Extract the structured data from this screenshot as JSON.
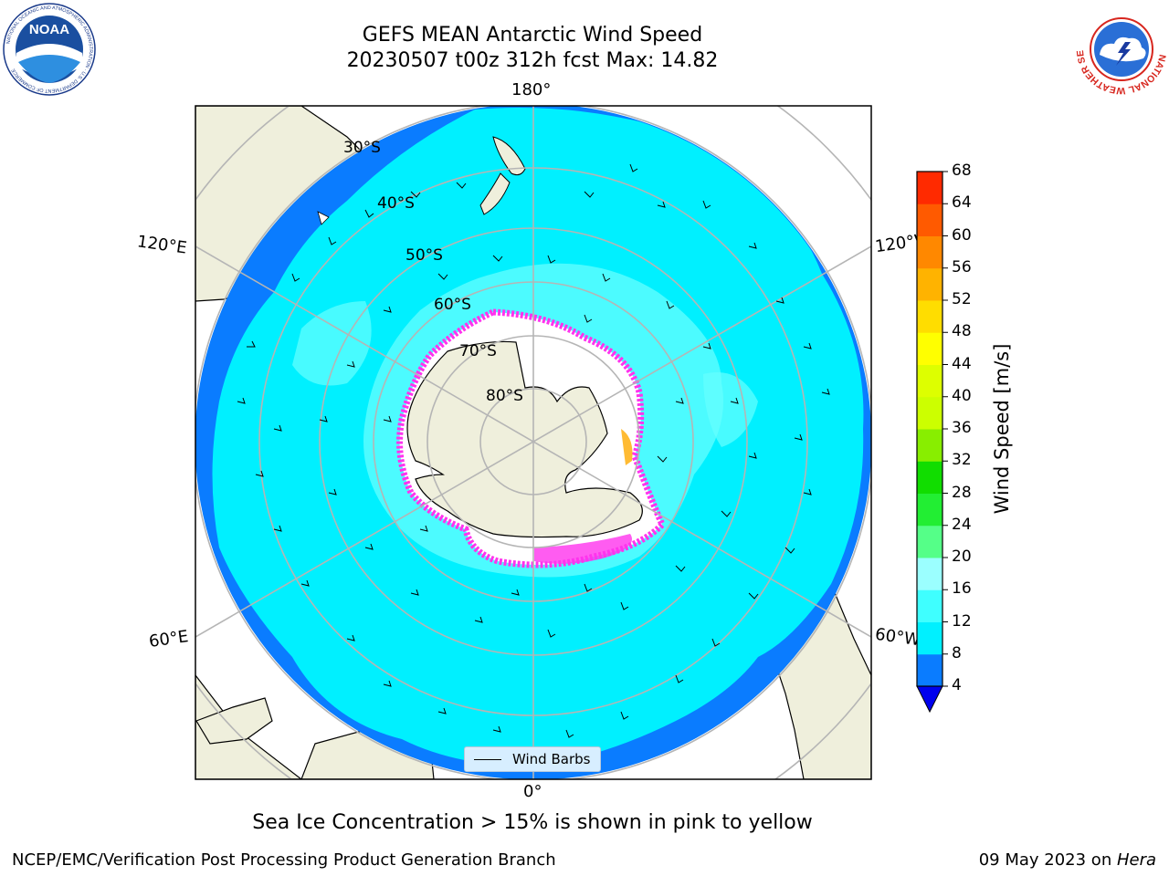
{
  "title": {
    "line1": "GEFS MEAN Antarctic Wind Speed",
    "line2": "20230507 t00z 312h fcst   Max: 14.82"
  },
  "subtitle": "Sea Ice Concentration > 15% is shown in pink to yellow",
  "footer": {
    "left": "NCEP/EMC/Verification Post Processing Product Generation Branch",
    "date": "09 May 2023 on ",
    "host": "Hera"
  },
  "logos": {
    "left": "noaa-logo",
    "left_text": "NOAA",
    "left_ring_text": "NATIONAL OCEANIC AND ATMOSPHERIC ADMINISTRATION · U.S. DEPARTMENT OF COMMERCE",
    "right": "nws-logo",
    "right_ring_text": "NATIONAL WEATHER SERVICE"
  },
  "map": {
    "projection": "south-polar-stereographic",
    "lon_labels": [
      "180°",
      "120°E",
      "120°W",
      "60°E",
      "60°W",
      "0°"
    ],
    "lat_labels": [
      "30°S",
      "40°S",
      "50°S",
      "60°S",
      "70°S",
      "80°S"
    ],
    "legend_label": "Wind Barbs",
    "colors": {
      "land": "#efefdc",
      "ocean_4_8": "#0a7cff",
      "ocean_8_12": "#00f0ff",
      "ocean_12_16": "#66ffff",
      "ice": "#ffffff",
      "ice_edge": "#ff33ee",
      "grid": "#b5b5b5"
    }
  },
  "colorbar": {
    "label": "Wind Speed [m/s]",
    "ticks": [
      "4",
      "8",
      "12",
      "16",
      "20",
      "24",
      "28",
      "32",
      "36",
      "40",
      "44",
      "48",
      "52",
      "56",
      "60",
      "64",
      "68"
    ],
    "colors": [
      "#0a7cff",
      "#00f0ff",
      "#3fffff",
      "#9bffff",
      "#55ff88",
      "#22ee33",
      "#11dd00",
      "#88ee00",
      "#ccff00",
      "#ddff00",
      "#ffff00",
      "#ffdd00",
      "#ffb300",
      "#ff8800",
      "#ff5a00",
      "#ff2a00",
      "#ff0000"
    ],
    "under_color": "#0000ee"
  },
  "chart_data": {
    "type": "heatmap",
    "title": "GEFS MEAN Antarctic Wind Speed",
    "subtitle": "20230507 t00z 312h fcst   Max: 14.82",
    "colorbar_label": "Wind Speed [m/s]",
    "value_range": [
      4,
      68
    ],
    "max_value": 14.82,
    "legend": [
      "Wind Barbs"
    ]
  }
}
